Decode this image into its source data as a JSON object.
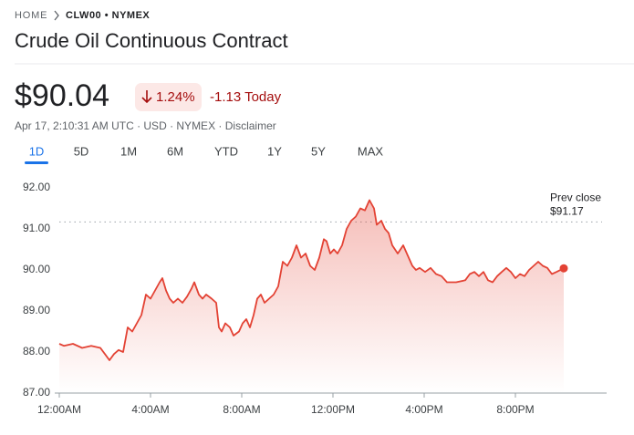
{
  "breadcrumb": {
    "home": "HOME",
    "symbol": "CLW00 • NYMEX"
  },
  "title": "Crude Oil Continuous Contract",
  "price": "$90.04",
  "change_percent": "1.24%",
  "change_today": "-1.13 Today",
  "info": "Apr 17, 2:10:31 AM UTC · USD · NYMEX · Disclaimer",
  "tabs": [
    "1D",
    "5D",
    "1M",
    "6M",
    "YTD",
    "1Y",
    "5Y",
    "MAX"
  ],
  "active_tab": 0,
  "chart_data": {
    "type": "line",
    "x": [
      0,
      0.2,
      0.6,
      1.0,
      1.4,
      1.8,
      2.0,
      2.2,
      2.4,
      2.6,
      2.8,
      3.0,
      3.2,
      3.4,
      3.6,
      3.8,
      4.0,
      4.2,
      4.4,
      4.52,
      4.68,
      4.84,
      5.0,
      5.2,
      5.4,
      5.6,
      5.8,
      5.92,
      6.12,
      6.28,
      6.44,
      6.68,
      6.88,
      7.0,
      7.12,
      7.28,
      7.48,
      7.64,
      7.88,
      8.04,
      8.2,
      8.36,
      8.52,
      8.68,
      8.84,
      9.0,
      9.2,
      9.4,
      9.6,
      9.8,
      10.0,
      10.2,
      10.4,
      10.6,
      10.8,
      11.0,
      11.2,
      11.4,
      11.6,
      11.72,
      11.88,
      12.04,
      12.2,
      12.4,
      12.6,
      12.8,
      13.0,
      13.2,
      13.4,
      13.6,
      13.8,
      13.92,
      14.12,
      14.28,
      14.44,
      14.6,
      14.84,
      15.08,
      15.32,
      15.48,
      15.64,
      15.8,
      16.04,
      16.28,
      16.52,
      16.76,
      17.0,
      17.4,
      17.8,
      18.0,
      18.2,
      18.4,
      18.6,
      18.8,
      19.0,
      19.2,
      19.4,
      19.6,
      19.8,
      20.0,
      20.2,
      20.4,
      20.6,
      20.8,
      21.0,
      21.2,
      21.4,
      21.6,
      21.8,
      22.12
    ],
    "series": [
      {
        "color": "#e34234",
        "values": [
          88.2,
          88.15,
          88.2,
          88.1,
          88.15,
          88.1,
          87.95,
          87.8,
          87.95,
          88.05,
          88.0,
          88.6,
          88.5,
          88.7,
          88.9,
          89.4,
          89.3,
          89.5,
          89.7,
          89.8,
          89.5,
          89.3,
          89.2,
          89.3,
          89.2,
          89.35,
          89.55,
          89.7,
          89.4,
          89.3,
          89.4,
          89.3,
          89.2,
          88.6,
          88.5,
          88.7,
          88.6,
          88.4,
          88.5,
          88.7,
          88.8,
          88.6,
          88.9,
          89.3,
          89.4,
          89.2,
          89.3,
          89.4,
          89.6,
          90.2,
          90.1,
          90.3,
          90.6,
          90.3,
          90.4,
          90.1,
          90.0,
          90.3,
          90.75,
          90.7,
          90.4,
          90.5,
          90.4,
          90.6,
          91.0,
          91.2,
          91.3,
          91.5,
          91.45,
          91.7,
          91.5,
          91.1,
          91.2,
          91.0,
          90.9,
          90.6,
          90.4,
          90.6,
          90.3,
          90.1,
          90.0,
          90.05,
          89.95,
          90.05,
          89.9,
          89.85,
          89.7,
          89.7,
          89.75,
          89.9,
          89.95,
          89.85,
          89.95,
          89.75,
          89.7,
          89.85,
          89.95,
          90.05,
          89.95,
          89.8,
          89.9,
          89.85,
          90.0,
          90.1,
          90.2,
          90.1,
          90.05,
          89.9,
          89.95,
          90.04
        ]
      }
    ],
    "xlim": [
      0,
      24
    ],
    "xticks": [
      {
        "value": 0,
        "label": "12:00AM"
      },
      {
        "value": 4,
        "label": "4:00AM"
      },
      {
        "value": 8,
        "label": "8:00AM"
      },
      {
        "value": 12,
        "label": "12:00PM"
      },
      {
        "value": 16,
        "label": "4:00PM"
      },
      {
        "value": 20,
        "label": "8:00PM"
      }
    ],
    "ylim": [
      87,
      92
    ],
    "yticks": [
      {
        "value": 87,
        "label": "87.00"
      },
      {
        "value": 88,
        "label": "88.00"
      },
      {
        "value": 89,
        "label": "89.00"
      },
      {
        "value": 90,
        "label": "90.00"
      },
      {
        "value": 91,
        "label": "91.00"
      },
      {
        "value": 92,
        "label": "92.00"
      }
    ],
    "grid": false,
    "prev_close": {
      "label": "Prev close",
      "value": 91.17,
      "value_label": "$91.17"
    }
  }
}
